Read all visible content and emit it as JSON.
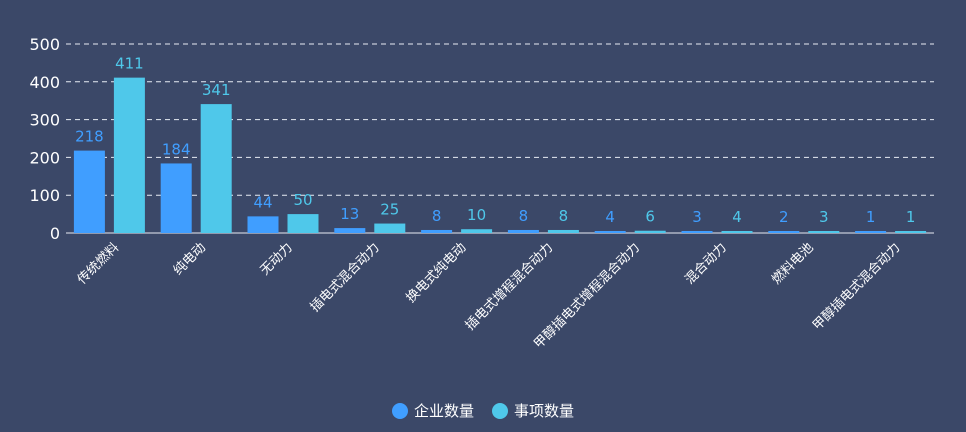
{
  "colors": {
    "background": "#3b4868",
    "series_0": "#409eff",
    "series_1": "#4fc8ea",
    "grid": "#e8ecf4",
    "text": "#ffffff"
  },
  "chart_data": {
    "type": "bar",
    "categories": [
      "传统燃料",
      "纯电动",
      "无动力",
      "插电式混合动力",
      "换电式纯电动",
      "插电式增程混合动力",
      "甲醇插电式增程混合动力",
      "混合动力",
      "燃料电池",
      "甲醇插电式混合动力"
    ],
    "series": [
      {
        "name": "企业数量",
        "values": [
          218,
          184,
          44,
          13,
          8,
          8,
          4,
          3,
          2,
          1
        ]
      },
      {
        "name": "事项数量",
        "values": [
          411,
          341,
          50,
          25,
          10,
          8,
          6,
          4,
          3,
          1
        ]
      }
    ],
    "yticks": [
      "0",
      "100",
      "200",
      "300",
      "400",
      "500"
    ],
    "ylim": [
      0,
      500
    ],
    "grid": true,
    "grid_style": "dashed",
    "data_labels": true,
    "legend_position": "bottom-center"
  }
}
